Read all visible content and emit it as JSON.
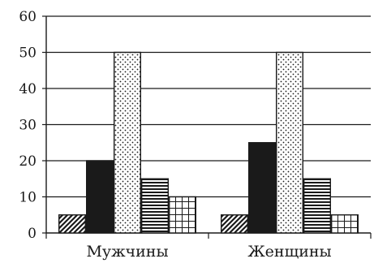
{
  "chart_data": {
    "type": "bar",
    "categories": [
      "Мужчины",
      "Женщины"
    ],
    "series": [
      {
        "values": [
          5,
          5
        ],
        "pattern": "diagonal-hatch"
      },
      {
        "values": [
          20,
          25
        ],
        "pattern": "solid-black"
      },
      {
        "values": [
          50,
          50
        ],
        "pattern": "dots"
      },
      {
        "values": [
          15,
          15
        ],
        "pattern": "horizontal-lines"
      },
      {
        "values": [
          10,
          5
        ],
        "pattern": "grid"
      }
    ],
    "ylim": [
      0,
      60
    ],
    "y_ticks": [
      0,
      10,
      20,
      30,
      40,
      50,
      60
    ],
    "grid": "horizontal",
    "legend": "none",
    "colors": {
      "ink": "#1a1a1a",
      "background": "#ffffff"
    }
  }
}
